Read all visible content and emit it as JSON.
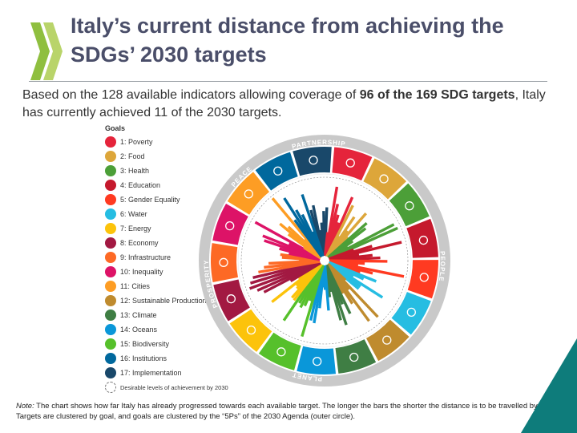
{
  "title": "Italy’s current distance from achieving the SDGs’ 2030 targets",
  "subtitle": {
    "part1": "Based on the 128 available indicators allowing coverage of ",
    "bold1": "96 of the 169 SDG targets",
    "part2": ", Italy has currently achieved 11 of the 2030 targets."
  },
  "note": {
    "label": "Note:",
    "text": " The chart shows how far Italy has already progressed towards each available target. The longer the bars the shorter the distance is to be travelled by 2030. Targets are clustered by goal, and goals are clustered by the “5Ps” of the 2030 Agenda (outer circle)."
  },
  "chart_data": {
    "type": "radial-bar",
    "legend_title": "Goals",
    "legend_footer": "Desirable levels of achievement by 2030",
    "goals": [
      {
        "label": "1: Poverty",
        "color": "#e5243b",
        "icon": "people-icon"
      },
      {
        "label": "2: Food",
        "color": "#dda63a",
        "icon": "bowl-icon"
      },
      {
        "label": "3: Health",
        "color": "#4c9f38",
        "icon": "heartbeat-icon"
      },
      {
        "label": "4: Education",
        "color": "#c5192d",
        "icon": "book-icon"
      },
      {
        "label": "5: Gender Equality",
        "color": "#ff3a21",
        "icon": "gender-icon"
      },
      {
        "label": "6: Water",
        "color": "#26bde2",
        "icon": "water-icon"
      },
      {
        "label": "7: Energy",
        "color": "#fcc30b",
        "icon": "sun-icon"
      },
      {
        "label": "8: Economy",
        "color": "#a21942",
        "icon": "growth-icon"
      },
      {
        "label": "9: Infrastructure",
        "color": "#fd6925",
        "icon": "cubes-icon"
      },
      {
        "label": "10: Inequality",
        "color": "#dd1367",
        "icon": "equal-icon"
      },
      {
        "label": "11: Cities",
        "color": "#fd9d24",
        "icon": "city-icon"
      },
      {
        "label": "12: Sustainable Production",
        "color": "#bf8b2e",
        "icon": "infinity-icon"
      },
      {
        "label": "13: Climate",
        "color": "#3f7e44",
        "icon": "eye-icon"
      },
      {
        "label": "14: Oceans",
        "color": "#0a97d9",
        "icon": "fish-icon"
      },
      {
        "label": "15: Biodiversity",
        "color": "#56c02b",
        "icon": "tree-icon"
      },
      {
        "label": "16: Institutions",
        "color": "#00689d",
        "icon": "dove-icon"
      },
      {
        "label": "17: Implementation",
        "color": "#19486a",
        "icon": "ring-icon"
      }
    ],
    "five_ps": [
      "PEOPLE",
      "PLANET",
      "PROSPERITY",
      "PEACE",
      "PARTNERSHIP"
    ],
    "bar_colors": [
      "#e5243b",
      "#dda63a",
      "#4c9f38",
      "#c5192d",
      "#ff3a21",
      "#26bde2",
      "#fcc30b",
      "#a21942",
      "#fd6925",
      "#dd1367",
      "#fd9d24",
      "#bf8b2e",
      "#3f7e44",
      "#0a97d9",
      "#56c02b",
      "#00689d",
      "#19486a"
    ]
  }
}
